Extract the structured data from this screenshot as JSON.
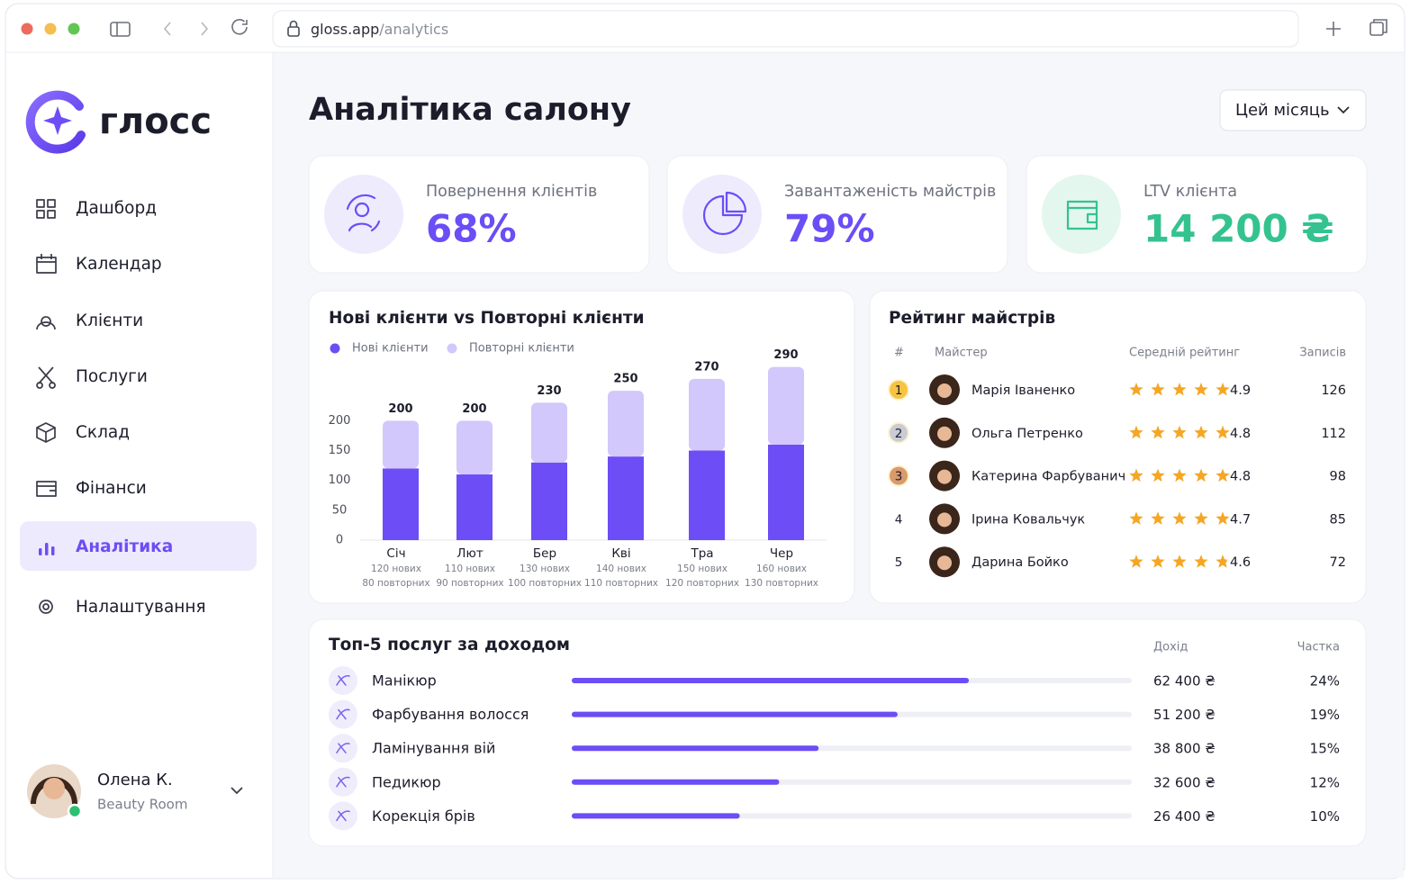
{
  "browser": {
    "url_host": "gloss.app",
    "url_path": "/analytics"
  },
  "sidebar": {
    "brand": "глосс",
    "nav": [
      "Дашборд",
      "Календар",
      "Клієнти",
      "Послуги",
      "Склад",
      "Фінанси",
      "Аналітика",
      "Налаштування"
    ],
    "active": 6,
    "user": {
      "name": "Олена К.",
      "subtitle": "Beauty Room"
    }
  },
  "header": {
    "title": "Аналітика салону",
    "period": "Цей місяць"
  },
  "kpis": [
    {
      "label": "Повернення клієнтів",
      "value": "68%",
      "color": "#6b4ef6"
    },
    {
      "label": "Завантаженість майстрів",
      "value": "79%",
      "color": "#6b4ef6"
    },
    {
      "label": "LTV клієнта",
      "value": "14 200 ₴",
      "color": "#34c38f"
    }
  ],
  "chart_data": {
    "type": "bar",
    "stacked": true,
    "title": "Нові клієнти vs Повторні клієнти",
    "categories": [
      "Січ",
      "Лют",
      "Бер",
      "Кві",
      "Тра",
      "Чер"
    ],
    "series": [
      {
        "name": "Нові клієнти",
        "color": "#6d4df5",
        "values": [
          120,
          110,
          130,
          140,
          150,
          160
        ],
        "value_labels": [
          "120 нових",
          "110 нових",
          "130 нових",
          "140 нових",
          "150 нових",
          "160 нових"
        ]
      },
      {
        "name": "Повторні клієнти",
        "color": "#d2c8fb",
        "values": [
          80,
          90,
          100,
          110,
          120,
          130
        ],
        "value_labels": [
          "80 повторних",
          "90 повторних",
          "100 повторних",
          "110 повторних",
          "120 повторних",
          "130 повторних"
        ]
      }
    ],
    "total_labels": [
      "200",
      "200",
      "230",
      "250",
      "270",
      "290"
    ],
    "ylim": [
      0,
      300
    ],
    "yticks": [
      0,
      50,
      100,
      150,
      200
    ],
    "grid": false
  },
  "ratings": {
    "title": "Рейтинг майстрів",
    "columns": [
      "#",
      "Майстер",
      "Середній рейтинг",
      "Записів"
    ],
    "rows": [
      {
        "rank": "1",
        "name": "Марія Іваненко",
        "rating": 4.9,
        "count": "126"
      },
      {
        "rank": "2",
        "name": "Ольга Петренко",
        "rating": 4.8,
        "count": "112"
      },
      {
        "rank": "3",
        "name": "Катерина Фарбуванич",
        "rating": 4.8,
        "count": "98"
      },
      {
        "rank": "4",
        "name": "Ірина Ковальчук",
        "rating": 4.7,
        "count": "85"
      },
      {
        "rank": "5",
        "name": "Дарина Бойко",
        "rating": 4.6,
        "count": "72"
      }
    ]
  },
  "services": {
    "title": "Топ-5 послуг за доходом",
    "columns": [
      "Дохід",
      "Частка"
    ],
    "xlim": [
      0,
      88000
    ],
    "rows": [
      {
        "name": "Манікюр",
        "revenue": 62400,
        "revenue_label": "62 400 ₴",
        "share": "24%"
      },
      {
        "name": "Фарбування волосся",
        "revenue": 51200,
        "revenue_label": "51 200 ₴",
        "share": "19%"
      },
      {
        "name": "Ламінування вій",
        "revenue": 38800,
        "revenue_label": "38 800 ₴",
        "share": "15%"
      },
      {
        "name": "Педикюр",
        "revenue": 32600,
        "revenue_label": "32 600 ₴",
        "share": "12%"
      },
      {
        "name": "Корекція брів",
        "revenue": 26400,
        "revenue_label": "26 400 ₴",
        "share": "10%"
      }
    ]
  }
}
